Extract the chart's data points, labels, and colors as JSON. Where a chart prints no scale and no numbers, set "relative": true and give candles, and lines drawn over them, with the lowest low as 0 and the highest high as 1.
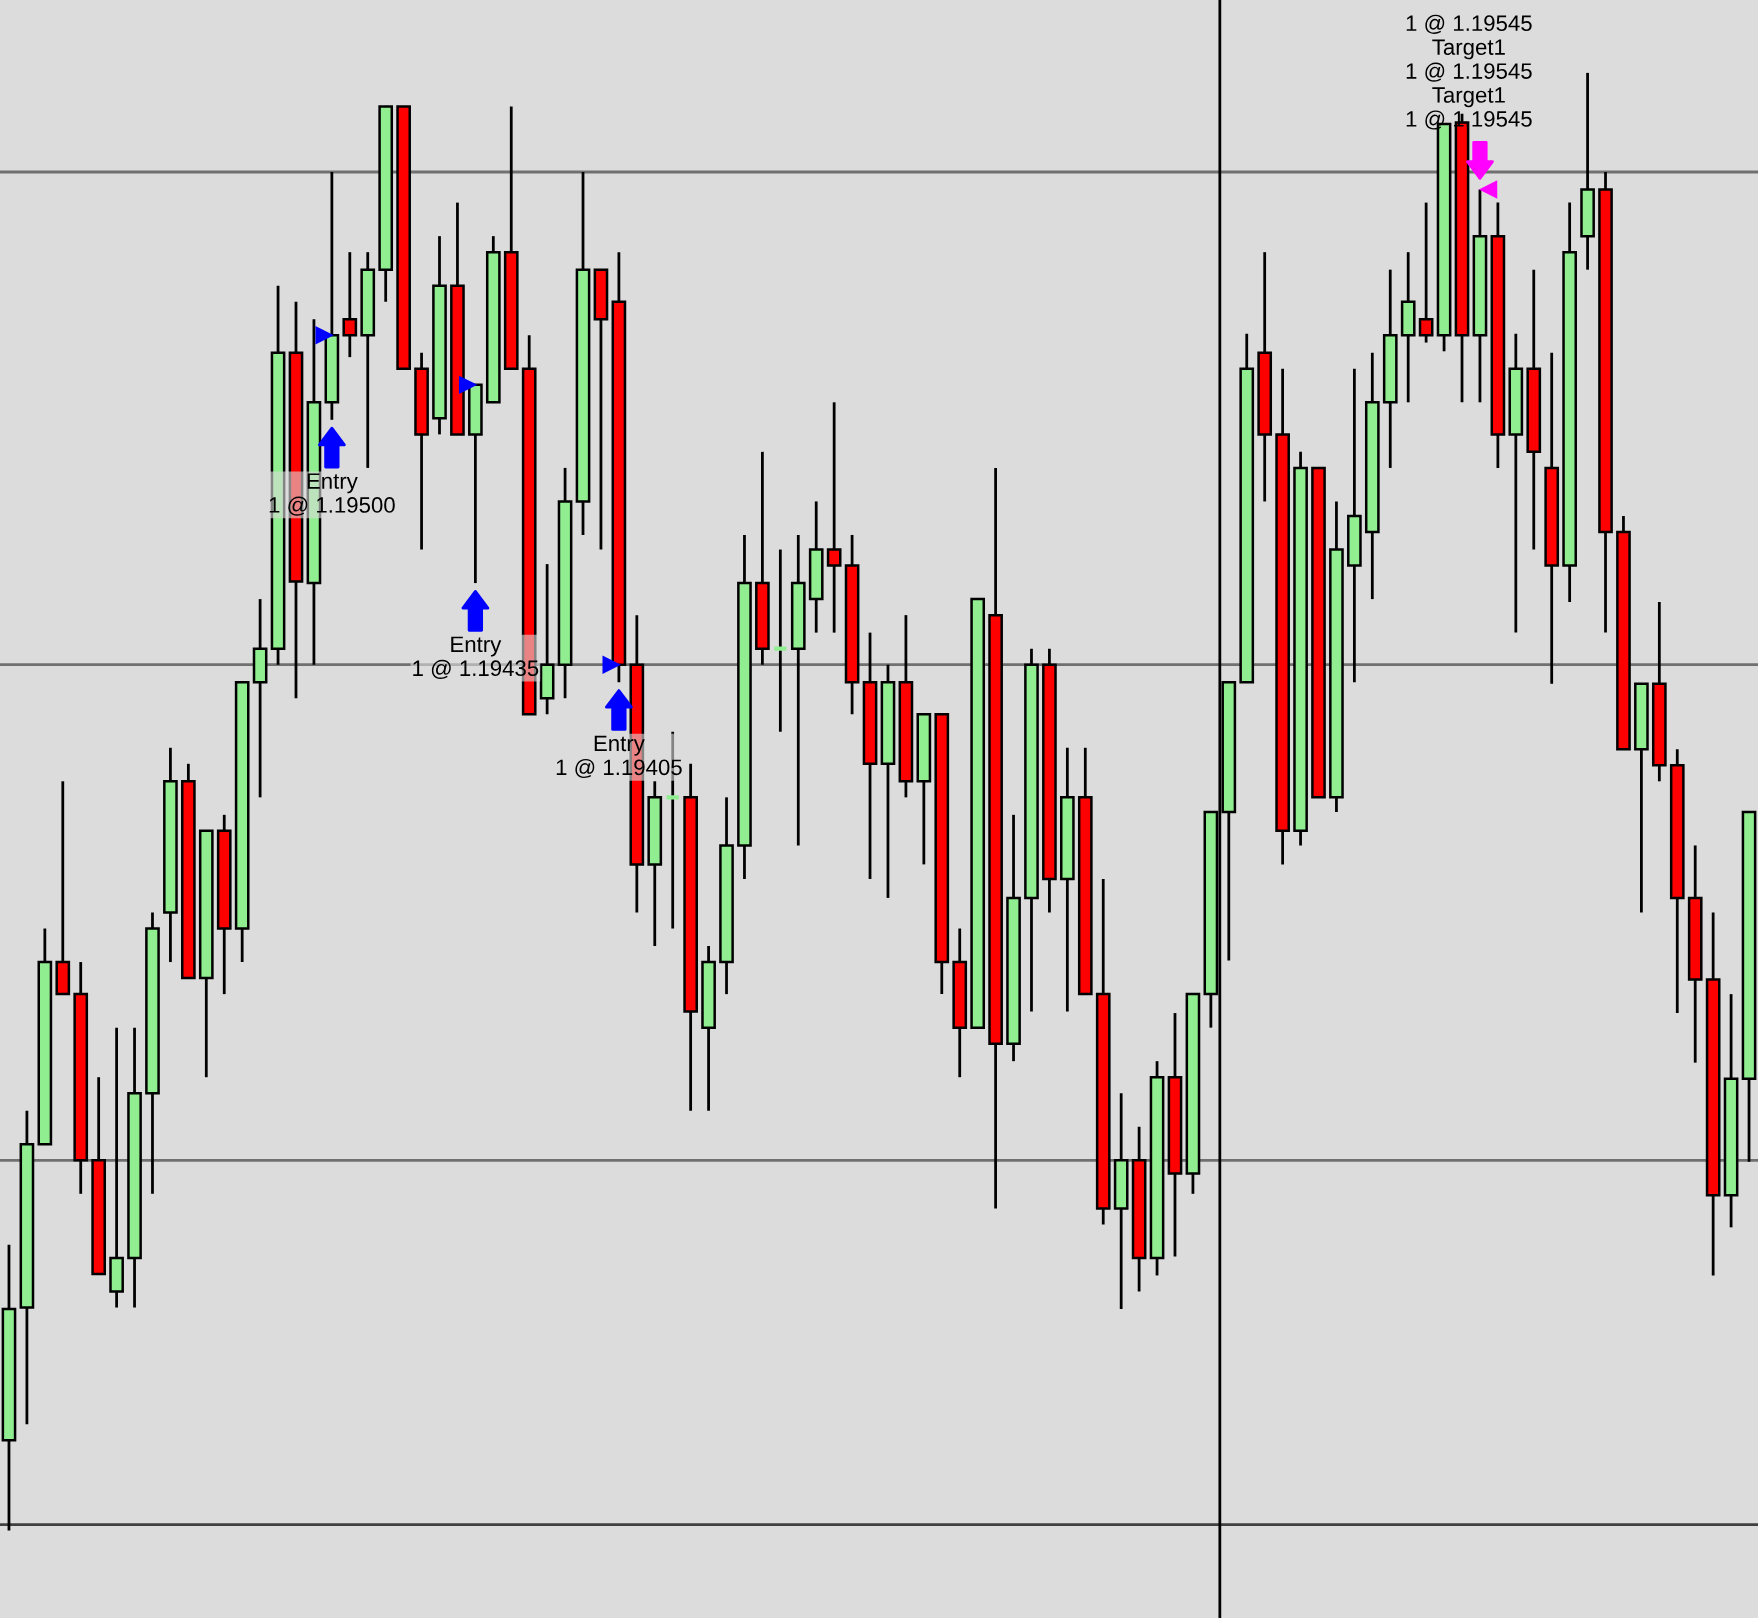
{
  "chart_data": {
    "type": "candlestick",
    "relative": true,
    "categories": [
      null,
      null,
      null,
      null,
      null,
      null,
      null,
      null,
      null,
      null,
      null,
      null,
      null,
      null,
      null,
      null,
      null,
      null,
      null,
      null,
      null,
      null,
      null,
      null,
      null,
      null,
      null,
      null,
      null,
      null,
      null,
      null,
      null,
      null,
      null,
      null,
      null,
      null,
      null,
      null,
      null,
      null,
      null,
      null,
      null,
      null,
      null,
      null,
      null,
      null,
      null,
      null,
      null,
      null,
      null,
      null,
      null,
      null,
      null,
      null,
      null,
      null,
      null,
      null,
      null,
      null,
      null,
      null,
      null,
      null,
      null,
      null,
      null,
      null,
      null,
      null,
      null,
      null,
      null,
      null,
      null,
      null,
      null,
      null,
      null,
      null,
      null,
      null,
      null,
      null,
      null,
      null,
      null,
      null,
      null,
      null,
      null,
      null
    ],
    "ohlc": [
      [
        0.062,
        0.196,
        0,
        0.152
      ],
      [
        0.153,
        0.288,
        0.073,
        0.265
      ],
      [
        0.265,
        0.413,
        0.265,
        0.39
      ],
      [
        0.39,
        0.514,
        0.368,
        0.368
      ],
      [
        0.368,
        0.39,
        0.231,
        0.254
      ],
      [
        0.254,
        0.311,
        0.176,
        0.176
      ],
      [
        0.164,
        0.345,
        0.153,
        0.187
      ],
      [
        0.187,
        0.345,
        0.153,
        0.3
      ],
      [
        0.3,
        0.424,
        0.231,
        0.413
      ],
      [
        0.424,
        0.537,
        0.39,
        0.514
      ],
      [
        0.514,
        0.526,
        0.379,
        0.379
      ],
      [
        0.379,
        0.48,
        0.311,
        0.48
      ],
      [
        0.48,
        0.491,
        0.368,
        0.413
      ],
      [
        0.413,
        0.582,
        0.39,
        0.582
      ],
      [
        0.582,
        0.639,
        0.503,
        0.605
      ],
      [
        0.605,
        0.854,
        0.594,
        0.808
      ],
      [
        0.808,
        0.843,
        0.571,
        0.651
      ],
      [
        0.65,
        0.831,
        0.594,
        0.774
      ],
      [
        0.774,
        0.932,
        0.762,
        0.82
      ],
      [
        0.831,
        0.877,
        0.805,
        0.82
      ],
      [
        0.82,
        0.877,
        0.729,
        0.865
      ],
      [
        0.865,
        0.977,
        0.843,
        0.977
      ],
      [
        0.977,
        0.977,
        0.797,
        0.797
      ],
      [
        0.797,
        0.808,
        0.673,
        0.752
      ],
      [
        0.763,
        0.888,
        0.752,
        0.854
      ],
      [
        0.854,
        0.911,
        0.752,
        0.752
      ],
      [
        0.752,
        0.786,
        0.65,
        0.786
      ],
      [
        0.774,
        0.888,
        0.774,
        0.877
      ],
      [
        0.877,
        0.977,
        0.797,
        0.797
      ],
      [
        0.797,
        0.82,
        0.56,
        0.56
      ],
      [
        0.571,
        0.663,
        0.56,
        0.594
      ],
      [
        0.594,
        0.729,
        0.571,
        0.706
      ],
      [
        0.706,
        0.932,
        0.683,
        0.865
      ],
      [
        0.865,
        0.865,
        0.673,
        0.831
      ],
      [
        0.843,
        0.877,
        0.582,
        0.594
      ],
      [
        0.594,
        0.628,
        0.424,
        0.457
      ],
      [
        0.457,
        0.514,
        0.401,
        0.503
      ],
      [
        0.503,
        0.548,
        0.413,
        0.503
      ],
      [
        0.503,
        0.526,
        0.288,
        0.356
      ],
      [
        0.345,
        0.401,
        0.288,
        0.39
      ],
      [
        0.39,
        0.503,
        0.368,
        0.47
      ],
      [
        0.47,
        0.683,
        0.447,
        0.65
      ],
      [
        0.65,
        0.74,
        0.594,
        0.605
      ],
      [
        0.605,
        0.673,
        0.548,
        0.605
      ],
      [
        0.605,
        0.683,
        0.47,
        0.65
      ],
      [
        0.639,
        0.706,
        0.616,
        0.673
      ],
      [
        0.673,
        0.774,
        0.616,
        0.662
      ],
      [
        0.662,
        0.683,
        0.56,
        0.582
      ],
      [
        0.582,
        0.616,
        0.447,
        0.526
      ],
      [
        0.526,
        0.594,
        0.434,
        0.582
      ],
      [
        0.582,
        0.628,
        0.503,
        0.514
      ],
      [
        0.514,
        0.56,
        0.457,
        0.56
      ],
      [
        0.56,
        0.56,
        0.368,
        0.39
      ],
      [
        0.39,
        0.413,
        0.311,
        0.345
      ],
      [
        0.345,
        0.639,
        0.345,
        0.639
      ],
      [
        0.628,
        0.729,
        0.221,
        0.334
      ],
      [
        0.334,
        0.491,
        0.322,
        0.434
      ],
      [
        0.434,
        0.605,
        0.356,
        0.594
      ],
      [
        0.594,
        0.605,
        0.424,
        0.447
      ],
      [
        0.447,
        0.537,
        0.356,
        0.503
      ],
      [
        0.503,
        0.537,
        0.368,
        0.368
      ],
      [
        0.368,
        0.447,
        0.21,
        0.221
      ],
      [
        0.221,
        0.3,
        0.152,
        0.254
      ],
      [
        0.254,
        0.277,
        0.164,
        0.187
      ],
      [
        0.187,
        0.322,
        0.175,
        0.311
      ],
      [
        0.311,
        0.355,
        0.188,
        0.245
      ],
      [
        0.245,
        0.368,
        0.231,
        0.368
      ],
      [
        0.368,
        0.493,
        0.345,
        0.493
      ],
      [
        0.493,
        0.582,
        0.391,
        0.582
      ],
      [
        0.582,
        0.821,
        0.582,
        0.797
      ],
      [
        0.808,
        0.877,
        0.706,
        0.752
      ],
      [
        0.752,
        0.797,
        0.457,
        0.48
      ],
      [
        0.48,
        0.74,
        0.47,
        0.729
      ],
      [
        0.729,
        0.729,
        0.503,
        0.503
      ],
      [
        0.503,
        0.706,
        0.493,
        0.673
      ],
      [
        0.662,
        0.797,
        0.582,
        0.696
      ],
      [
        0.685,
        0.808,
        0.639,
        0.774
      ],
      [
        0.774,
        0.865,
        0.729,
        0.82
      ],
      [
        0.82,
        0.877,
        0.774,
        0.843
      ],
      [
        0.831,
        0.911,
        0.815,
        0.82
      ],
      [
        0.82,
        0.965,
        0.809,
        0.965
      ],
      [
        0.966,
        0.972,
        0.774,
        0.82
      ],
      [
        0.82,
        0.92,
        0.774,
        0.888
      ],
      [
        0.888,
        0.911,
        0.729,
        0.752
      ],
      [
        0.752,
        0.821,
        0.616,
        0.797
      ],
      [
        0.797,
        0.865,
        0.673,
        0.74
      ],
      [
        0.729,
        0.808,
        0.581,
        0.662
      ],
      [
        0.662,
        0.911,
        0.637,
        0.877
      ],
      [
        0.888,
        1.0,
        0.865,
        0.92
      ],
      [
        0.92,
        0.932,
        0.616,
        0.685
      ],
      [
        0.685,
        0.696,
        0.536,
        0.536
      ],
      [
        0.536,
        0.581,
        0.424,
        0.581
      ],
      [
        0.581,
        0.637,
        0.514,
        0.525
      ],
      [
        0.525,
        0.536,
        0.355,
        0.434
      ],
      [
        0.434,
        0.47,
        0.321,
        0.378
      ],
      [
        0.378,
        0.424,
        0.175,
        0.23
      ],
      [
        0.23,
        0.368,
        0.208,
        0.31
      ],
      [
        0.31,
        0.493,
        0.253,
        0.493
      ]
    ],
    "colors": [
      "#90ee90",
      "#90ee90",
      "#90ee90",
      "#ff0000",
      "#ff0000",
      "#ff0000",
      "#90ee90",
      "#90ee90",
      "#90ee90",
      "#90ee90",
      "#ff0000",
      "#90ee90",
      "#ff0000",
      "#90ee90",
      "#90ee90",
      "#90ee90",
      "#ff0000",
      "#90ee90",
      "#90ee90",
      "#ff0000",
      "#90ee90",
      "#90ee90",
      "#ff0000",
      "#ff0000",
      "#90ee90",
      "#ff0000",
      "#90ee90",
      "#90ee90",
      "#ff0000",
      "#ff0000",
      "#90ee90",
      "#90ee90",
      "#90ee90",
      "#ff0000",
      "#ff0000",
      "#ff0000",
      "#90ee90",
      "#90ee90",
      "#ff0000",
      "#90ee90",
      "#90ee90",
      "#90ee90",
      "#ff0000",
      "#90ee90",
      "#90ee90",
      "#90ee90",
      "#ff0000",
      "#ff0000",
      "#ff0000",
      "#90ee90",
      "#ff0000",
      "#90ee90",
      "#ff0000",
      "#ff0000",
      "#90ee90",
      "#ff0000",
      "#90ee90",
      "#90ee90",
      "#ff0000",
      "#90ee90",
      "#ff0000",
      "#ff0000",
      "#90ee90",
      "#ff0000",
      "#90ee90",
      "#ff0000",
      "#90ee90",
      "#90ee90",
      "#90ee90",
      "#90ee90",
      "#ff0000",
      "#ff0000",
      "#90ee90",
      "#ff0000",
      "#90ee90",
      "#90ee90",
      "#90ee90",
      "#90ee90",
      "#90ee90",
      "#ff0000",
      "#90ee90",
      "#ff0000",
      "#90ee90",
      "#ff0000",
      "#90ee90",
      "#ff0000",
      "#ff0000",
      "#90ee90",
      "#90ee90",
      "#ff0000",
      "#ff0000",
      "#90ee90",
      "#ff0000",
      "#ff0000",
      "#ff0000",
      "#ff0000",
      "#90ee90",
      "#90ee90"
    ],
    "ref_lines": [
      {
        "axis": "y",
        "value": 0.932,
        "color": "#707070"
      },
      {
        "axis": "y",
        "value": 0.594,
        "color": "#707070"
      },
      {
        "axis": "y",
        "value": 0.254,
        "color": "#707070"
      },
      {
        "axis": "y",
        "value": 0.004,
        "color": "#404040"
      }
    ],
    "annotations": [
      "Entry\n1 @ 1.19500",
      "Entry\n1 @ 1.19435",
      "Entry\n1 @ 1.19405",
      "1 @ 1.19545\nTarget1\n1 @ 1.19545\nTarget1\n1 @ 1.19545"
    ]
  }
}
